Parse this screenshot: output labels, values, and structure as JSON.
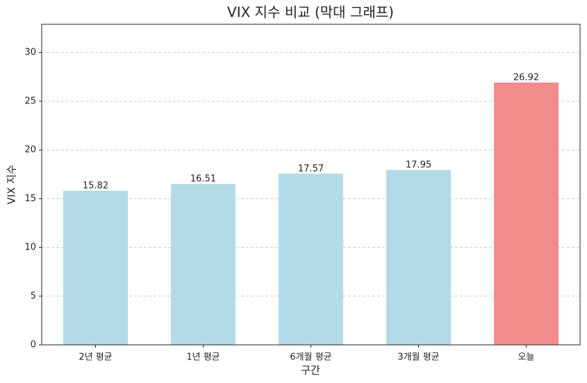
{
  "chart_data": {
    "type": "bar",
    "title": "VIX 지수 비교 (막대 그래프)",
    "x_label": "구간",
    "y_label": "VIX 지수",
    "categories": [
      "2년 평균",
      "1년 평균",
      "6개월 평균",
      "3개월 평균",
      "오늘"
    ],
    "values": [
      15.82,
      16.51,
      17.57,
      17.95,
      26.92
    ],
    "colors": [
      "#b3dbe7",
      "#b3dbe7",
      "#b3dbe7",
      "#b3dbe7",
      "#f08c8a"
    ],
    "ylim": [
      0,
      32.9
    ],
    "yticks": [
      0,
      5,
      10,
      15,
      20,
      25,
      30
    ],
    "grid": true
  }
}
